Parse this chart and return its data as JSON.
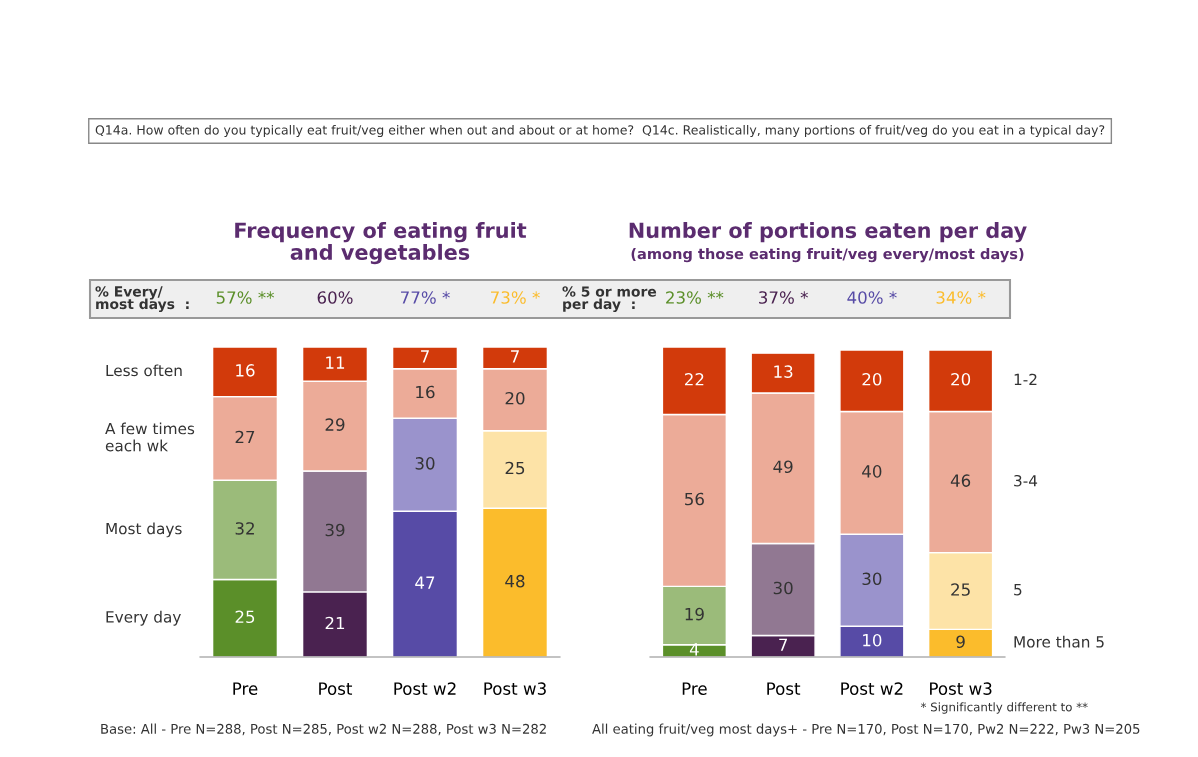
{
  "chart_data": [
    {
      "type": "bar",
      "stacked": true,
      "title": "Frequency of eating fruit\nand vegetables",
      "categories": [
        "Pre",
        "Post",
        "Post w2",
        "Post w3"
      ],
      "ylim": [
        0,
        100
      ],
      "tick_labels": "x",
      "data_labels": true,
      "legend": "left",
      "series": [
        {
          "name": "Every day",
          "colors": [
            "#5b8f29",
            "#4a2250",
            "#574ba6",
            "#fbbc2c"
          ],
          "values": [
            25,
            21,
            47,
            48
          ]
        },
        {
          "name": "Most days",
          "colors": [
            "#9bbb7a",
            "#917892",
            "#9a93cc",
            "#fde3a7"
          ],
          "values": [
            32,
            39,
            30,
            25
          ]
        },
        {
          "name": "A few times\neach wk",
          "color": "#ecab98",
          "values": [
            27,
            29,
            16,
            20
          ]
        },
        {
          "name": "Less often",
          "color": "#d23a0b",
          "values": [
            16,
            11,
            7,
            7
          ]
        }
      ],
      "annotations": [
        "Q14a. How often do you typically eat fruit/veg either when out and about or at home?  Q14c. Realistically, many portions of fruit/veg do you eat in a typical day?",
        "% Every/\nmost days  :",
        "Base: All - Pre N=288, Post N=285, Post w2 N=288, Post w3 N=282",
        "57% **",
        "60%",
        "77% *",
        "73% *"
      ]
    },
    {
      "type": "bar",
      "stacked": true,
      "title": "Number of portions eaten per day",
      "subtitle": "(among those eating fruit/veg every/most days)",
      "categories": [
        "Pre",
        "Post",
        "Post w2",
        "Post w3"
      ],
      "ylim": [
        0,
        101
      ],
      "tick_labels": "x",
      "data_labels": true,
      "legend": "right",
      "series": [
        {
          "name": "More than 5",
          "colors": [
            "#5b8f29",
            "#4a2250",
            "#574ba6",
            "#fbbc2c"
          ],
          "values": [
            4,
            7,
            10,
            9
          ]
        },
        {
          "name": "5",
          "colors": [
            "#9bbb7a",
            "#917892",
            "#9a93cc",
            "#fde3a7"
          ],
          "values": [
            19,
            30,
            30,
            25
          ]
        },
        {
          "name": "3-4",
          "color": "#ecab98",
          "values": [
            56,
            49,
            40,
            46
          ]
        },
        {
          "name": "1-2",
          "color": "#d23a0b",
          "values": [
            22,
            13,
            20,
            20
          ]
        }
      ],
      "annotations": [
        "% 5 or more\nper day  :",
        "* Significantly different to **",
        "All eating fruit/veg most days+ - Pre N=170, Post N=170, Pw2 N=222, Pw3 N=205",
        "23% **",
        "37% *",
        "40% *",
        "34% *"
      ]
    }
  ]
}
